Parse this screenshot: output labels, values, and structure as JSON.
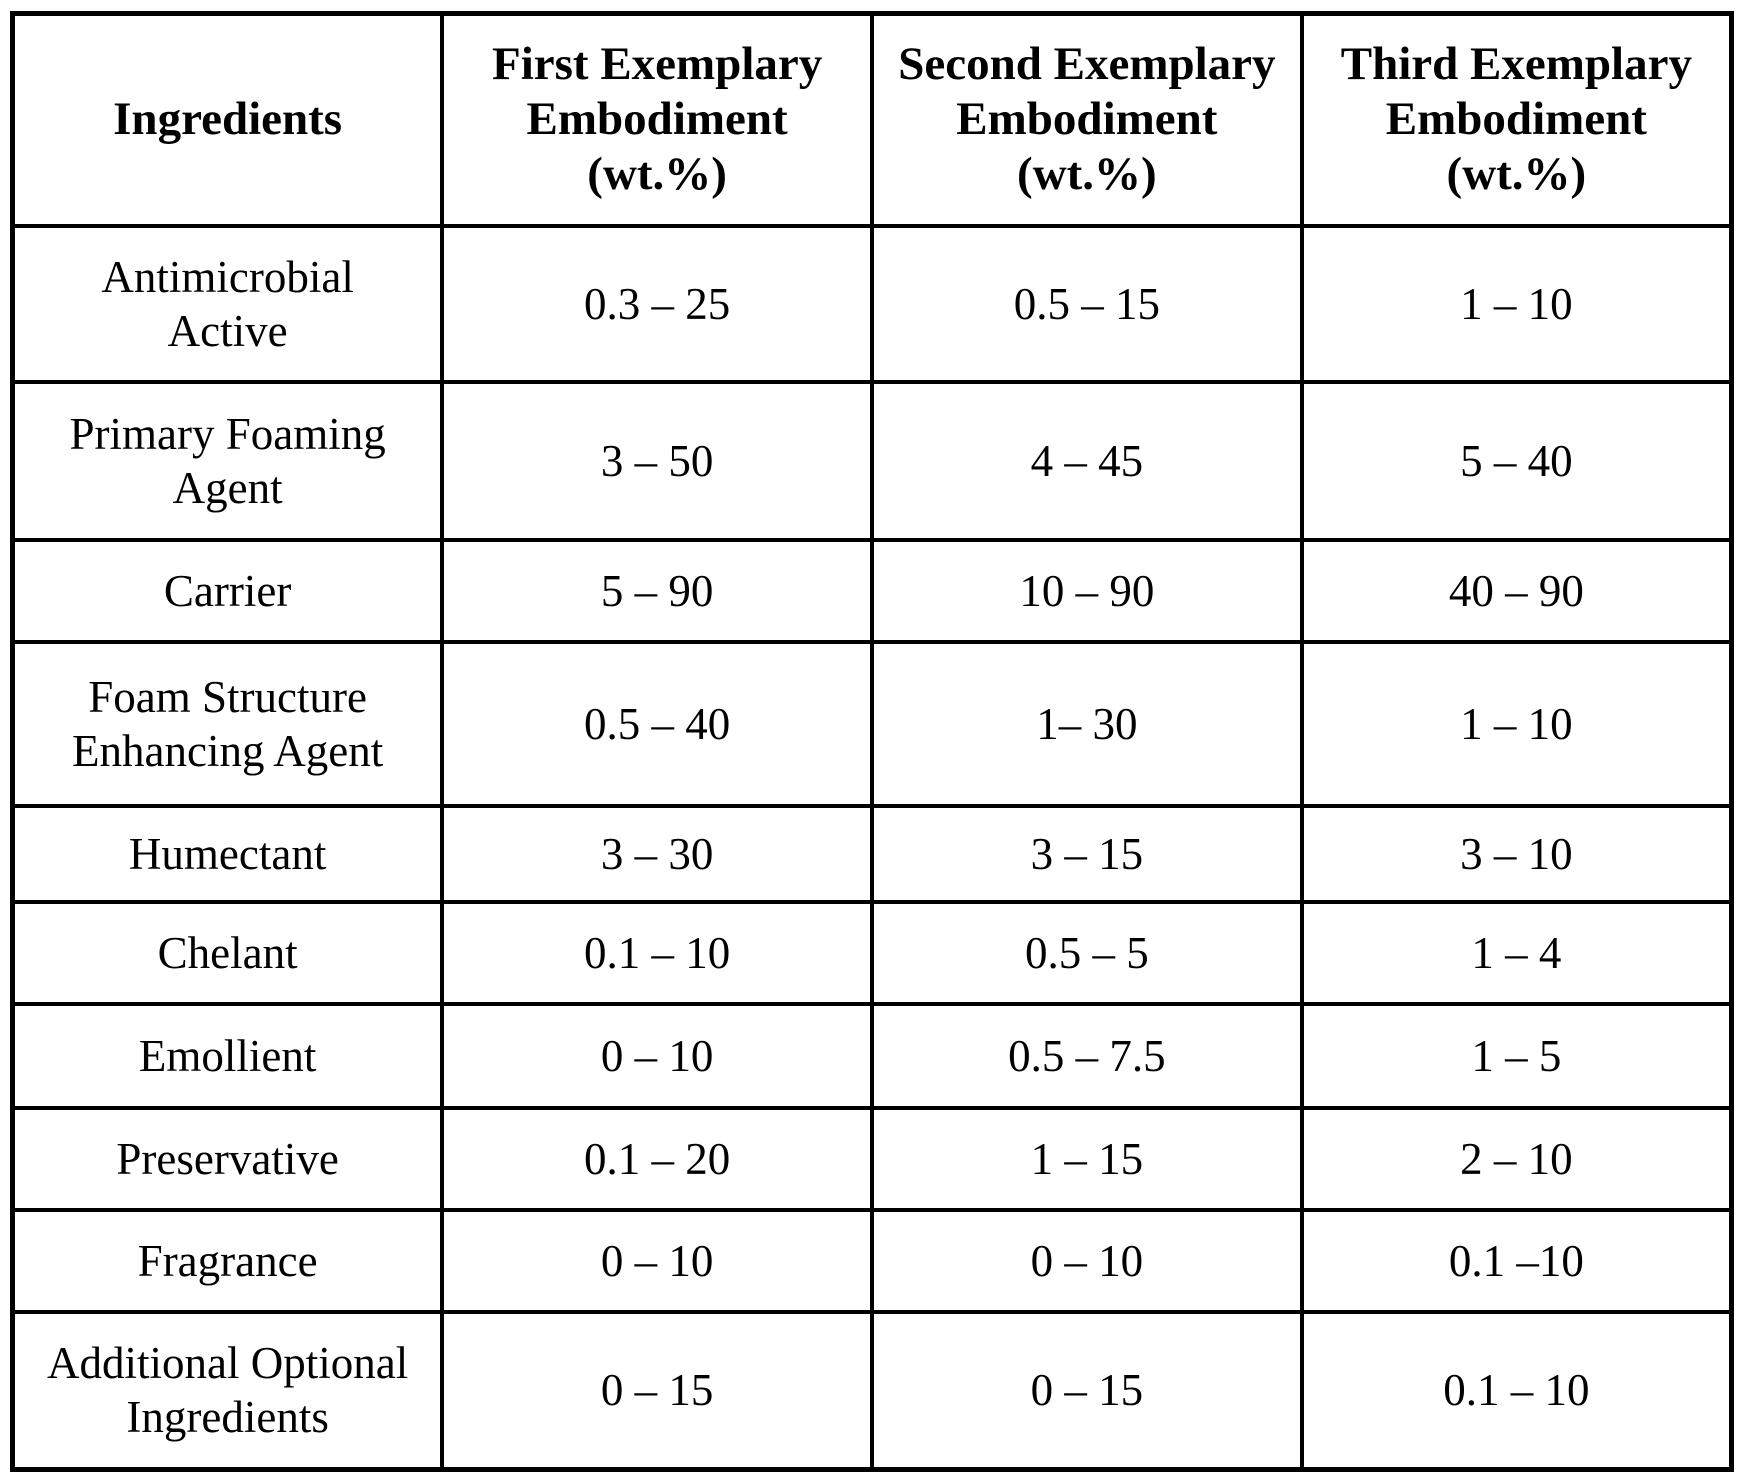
{
  "colors": {
    "background": "#ffffff",
    "text": "#000000",
    "border": "#000000"
  },
  "table": {
    "headers": [
      "Ingredients",
      "First Exemplary\nEmbodiment\n(wt.%)",
      "Second Exemplary\nEmbodiment\n(wt.%)",
      "Third Exemplary\nEmbodiment\n(wt.%)"
    ],
    "rows": [
      {
        "ingredient": "Antimicrobial\nActive",
        "first": "0.3 – 25",
        "second": "0.5 – 15",
        "third": "1 – 10"
      },
      {
        "ingredient": "Primary Foaming\nAgent",
        "first": "3 – 50",
        "second": "4 – 45",
        "third": "5 – 40"
      },
      {
        "ingredient": "Carrier",
        "first": "5 – 90",
        "second": "10 – 90",
        "third": "40 – 90"
      },
      {
        "ingredient": "Foam Structure\nEnhancing Agent",
        "first": "0.5 – 40",
        "second": "1– 30",
        "third": "1 – 10"
      },
      {
        "ingredient": "Humectant",
        "first": "3 – 30",
        "second": "3 – 15",
        "third": "3 – 10"
      },
      {
        "ingredient": "Chelant",
        "first": "0.1 – 10",
        "second": "0.5 – 5",
        "third": "1 – 4"
      },
      {
        "ingredient": "Emollient",
        "first": "0 – 10",
        "second": "0.5 – 7.5",
        "third": "1 – 5"
      },
      {
        "ingredient": "Preservative",
        "first": "0.1 – 20",
        "second": "1 – 15",
        "third": "2 – 10"
      },
      {
        "ingredient": "Fragrance",
        "first": "0 – 10",
        "second": "0 – 10",
        "third": "0.1 –10"
      },
      {
        "ingredient": "Additional Optional\nIngredients",
        "first": "0 – 15",
        "second": "0 – 15",
        "third": "0.1 – 10"
      }
    ]
  }
}
